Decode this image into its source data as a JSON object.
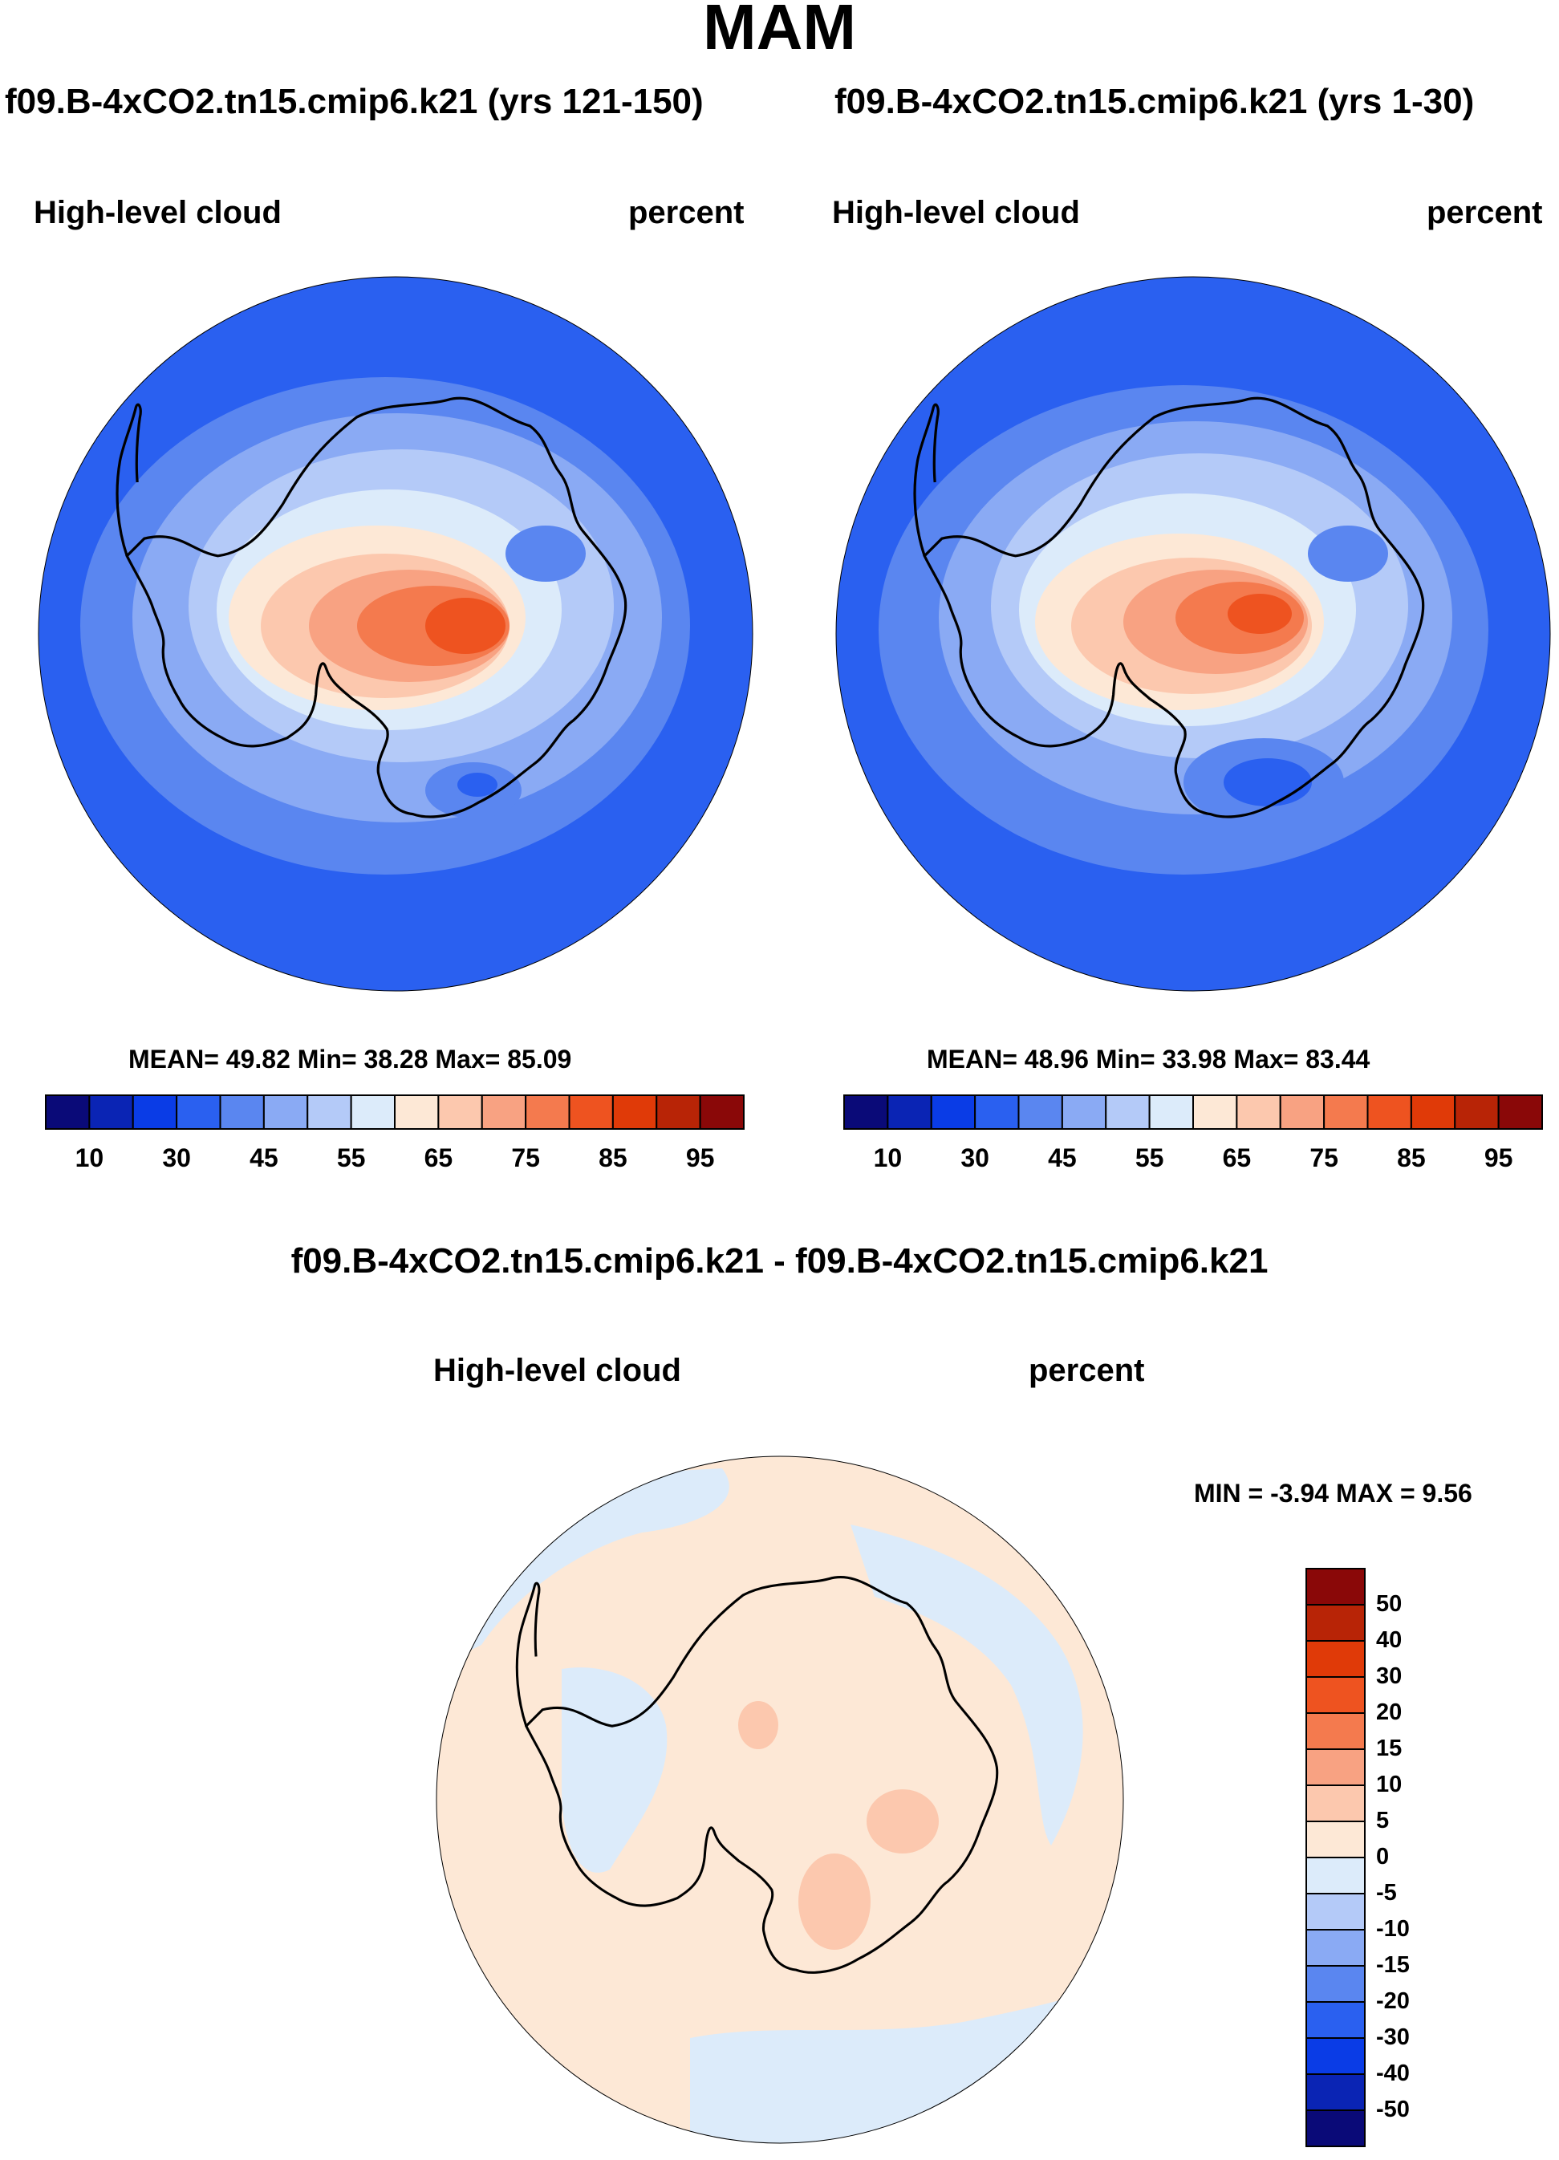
{
  "title": "MAM",
  "panels": [
    {
      "case": "f09.B-4xCO2.tn15.cmip6.k21 (yrs 121-150)",
      "variable": "High-level cloud",
      "units": "percent",
      "stats": "MEAN=  49.82  Min=  38.28  Max=  85.09"
    },
    {
      "case": "f09.B-4xCO2.tn15.cmip6.k21 (yrs 1-30)",
      "variable": "High-level cloud",
      "units": "percent",
      "stats": "MEAN=  48.96  Min=  33.98  Max=  83.44"
    }
  ],
  "diff_panel": {
    "title": "f09.B-4xCO2.tn15.cmip6.k21 - f09.B-4xCO2.tn15.cmip6.k21",
    "variable": "High-level cloud",
    "units": "percent",
    "stats": "MIN =  -3.94 MAX =   9.56"
  },
  "colorbar_main": {
    "colors": [
      "#0a0a78",
      "#0a24b4",
      "#0a3ce6",
      "#2a60f0",
      "#5a86f0",
      "#8aaaf4",
      "#b4caf8",
      "#dcebfa",
      "#fde8d6",
      "#fcc8ae",
      "#f8a282",
      "#f47a4e",
      "#ee5320",
      "#e03a08",
      "#b82406",
      "#8a0808"
    ],
    "tick_labels": [
      "10",
      "30",
      "45",
      "55",
      "65",
      "75",
      "85",
      "95"
    ]
  },
  "colorbar_diff": {
    "colors": [
      "#8a0808",
      "#b82406",
      "#e03a08",
      "#ee5320",
      "#f47a4e",
      "#f8a282",
      "#fcc8ae",
      "#fde8d6",
      "#dcebfa",
      "#b4caf8",
      "#8aaaf4",
      "#5a86f0",
      "#2a60f0",
      "#0a3ce6",
      "#0a24b4",
      "#0a0a78"
    ],
    "tick_labels": [
      "50",
      "40",
      "30",
      "20",
      "15",
      "10",
      "5",
      "0",
      "-5",
      "-10",
      "-15",
      "-20",
      "-30",
      "-40",
      "-50"
    ]
  },
  "map_colors": {
    "ocean_low": "#2a60f0",
    "ring_mid": "#5a86f0",
    "ring_light": "#8aaaf4",
    "ring_pale": "#b4caf8",
    "palest": "#dcebfa",
    "peach": "#fde8d6",
    "salmon_light": "#fcc8ae",
    "salmon": "#f8a282",
    "orange": "#f47a4e",
    "orange_red": "#ee5320",
    "diff_pos": "#fde8d6",
    "diff_neg": "#dcebfa",
    "diff_pos2": "#fcc8ae"
  }
}
